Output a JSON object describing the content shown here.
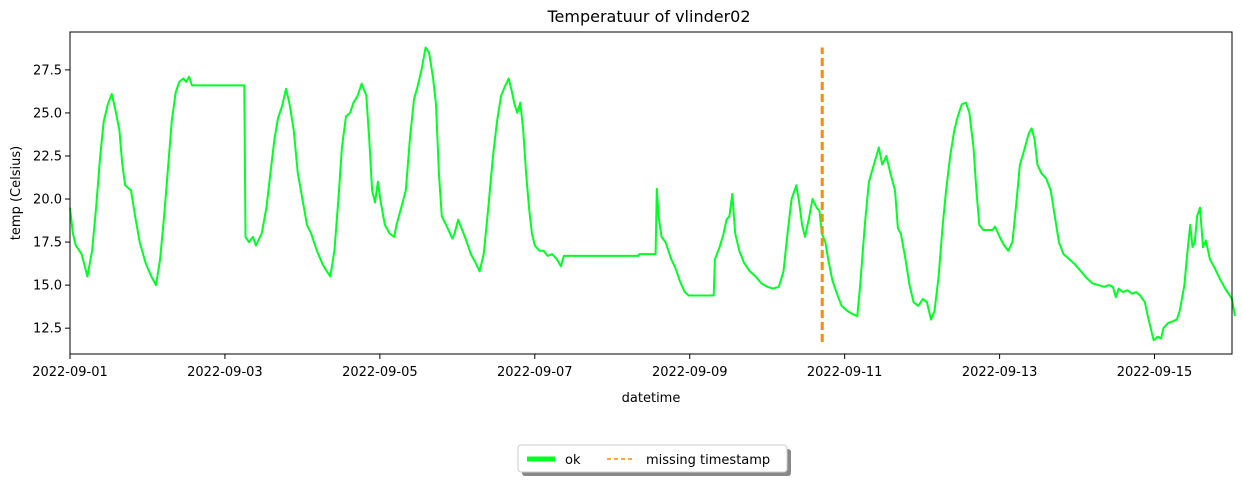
{
  "chart_data": {
    "type": "line",
    "title": "Temperatuur of vlinder02",
    "xlabel": "datetime",
    "ylabel": "temp (Celsius)",
    "x_range": [
      "2022-09-01",
      "2022-09-16"
    ],
    "xlim": [
      0,
      15
    ],
    "ylim": [
      11.0,
      29.7
    ],
    "x_ticks": [
      {
        "v": 0,
        "label": "2022-09-01"
      },
      {
        "v": 2,
        "label": "2022-09-03"
      },
      {
        "v": 4,
        "label": "2022-09-05"
      },
      {
        "v": 6,
        "label": "2022-09-07"
      },
      {
        "v": 8,
        "label": "2022-09-09"
      },
      {
        "v": 10,
        "label": "2022-09-11"
      },
      {
        "v": 12,
        "label": "2022-09-13"
      },
      {
        "v": 14,
        "label": "2022-09-15"
      }
    ],
    "y_ticks": [
      {
        "v": 12.5,
        "label": "12.5"
      },
      {
        "v": 15.0,
        "label": "15.0"
      },
      {
        "v": 17.5,
        "label": "17.5"
      },
      {
        "v": 20.0,
        "label": "20.0"
      },
      {
        "v": 22.5,
        "label": "22.5"
      },
      {
        "v": 25.0,
        "label": "25.0"
      },
      {
        "v": 27.5,
        "label": "27.5"
      }
    ],
    "grid": false,
    "legend_position": "bottom-center",
    "series": [
      {
        "name": "ok",
        "color": "#00ff22",
        "style": "solid",
        "points": [
          [
            0.0,
            19.5
          ],
          [
            0.05,
            18.0
          ],
          [
            0.1,
            17.3
          ],
          [
            0.2,
            16.8
          ],
          [
            0.3,
            15.5
          ],
          [
            0.38,
            17.0
          ],
          [
            0.45,
            19.5
          ],
          [
            0.52,
            22.5
          ],
          [
            0.58,
            24.5
          ],
          [
            0.65,
            25.5
          ],
          [
            0.72,
            26.1
          ],
          [
            0.78,
            25.2
          ],
          [
            0.85,
            24.0
          ],
          [
            0.9,
            22.0
          ],
          [
            0.95,
            20.8
          ],
          [
            1.05,
            20.5
          ],
          [
            1.12,
            19.0
          ],
          [
            1.2,
            17.5
          ],
          [
            1.3,
            16.3
          ],
          [
            1.4,
            15.5
          ],
          [
            1.48,
            15.0
          ],
          [
            1.55,
            16.5
          ],
          [
            1.62,
            19.0
          ],
          [
            1.68,
            21.5
          ],
          [
            1.75,
            24.5
          ],
          [
            1.82,
            26.2
          ],
          [
            1.88,
            26.8
          ],
          [
            1.95,
            27.0
          ],
          [
            2.0,
            26.8
          ],
          [
            2.05,
            27.1
          ],
          [
            2.1,
            26.6
          ],
          [
            2.2,
            26.6
          ],
          [
            2.4,
            26.6
          ],
          [
            2.6,
            26.6
          ],
          [
            2.8,
            26.6
          ],
          [
            3.0,
            26.6
          ],
          [
            3.02,
            17.8
          ],
          [
            3.08,
            17.5
          ],
          [
            3.15,
            17.8
          ],
          [
            3.2,
            17.3
          ],
          [
            3.3,
            18.0
          ],
          [
            3.38,
            19.5
          ],
          [
            3.45,
            21.5
          ],
          [
            3.52,
            23.5
          ],
          [
            3.58,
            24.7
          ],
          [
            3.65,
            25.4
          ],
          [
            3.72,
            26.4
          ],
          [
            3.78,
            25.5
          ],
          [
            3.85,
            24.0
          ],
          [
            3.92,
            21.5
          ],
          [
            4.0,
            20.0
          ],
          [
            4.08,
            18.5
          ],
          [
            4.15,
            18.0
          ],
          [
            4.25,
            17.0
          ],
          [
            4.35,
            16.2
          ],
          [
            4.42,
            15.8
          ],
          [
            4.48,
            15.5
          ],
          [
            4.55,
            17.0
          ],
          [
            4.62,
            20.0
          ],
          [
            4.68,
            23.0
          ],
          [
            4.75,
            24.8
          ],
          [
            4.82,
            25.0
          ],
          [
            4.88,
            25.6
          ],
          [
            4.95,
            26.0
          ],
          [
            5.02,
            26.7
          ],
          [
            5.1,
            26.0
          ],
          [
            5.15,
            23.5
          ],
          [
            5.2,
            20.5
          ],
          [
            5.25,
            19.8
          ],
          [
            5.3,
            21.0
          ],
          [
            5.35,
            19.8
          ],
          [
            5.42,
            18.5
          ],
          [
            5.5,
            18.0
          ],
          [
            5.58,
            17.8
          ],
          [
            5.62,
            18.5
          ],
          [
            5.7,
            19.5
          ],
          [
            5.78,
            20.5
          ],
          [
            5.85,
            23.5
          ],
          [
            5.92,
            25.8
          ],
          [
            5.98,
            26.5
          ],
          [
            6.05,
            27.5
          ],
          [
            6.12,
            28.8
          ],
          [
            6.18,
            28.5
          ],
          [
            6.25,
            27.0
          ],
          [
            6.3,
            25.5
          ],
          [
            6.35,
            21.5
          ],
          [
            6.4,
            19.0
          ],
          [
            6.5,
            18.3
          ],
          [
            6.58,
            17.7
          ],
          [
            6.62,
            18.0
          ],
          [
            6.68,
            18.8
          ],
          [
            6.75,
            18.2
          ],
          [
            6.82,
            17.6
          ],
          [
            6.9,
            16.8
          ],
          [
            6.98,
            16.3
          ],
          [
            7.05,
            15.8
          ],
          [
            7.12,
            16.8
          ],
          [
            7.2,
            19.5
          ],
          [
            7.28,
            22.5
          ],
          [
            7.35,
            24.5
          ],
          [
            7.42,
            26.0
          ],
          [
            7.48,
            26.5
          ],
          [
            7.55,
            27.0
          ],
          [
            7.6,
            26.3
          ],
          [
            7.65,
            25.5
          ],
          [
            7.7,
            25.0
          ],
          [
            7.75,
            25.6
          ],
          [
            7.8,
            24.0
          ],
          [
            7.85,
            21.5
          ],
          [
            7.9,
            19.5
          ],
          [
            7.95,
            18.0
          ],
          [
            8.0,
            17.3
          ],
          [
            8.08,
            17.0
          ],
          [
            8.15,
            17.0
          ],
          [
            8.22,
            16.7
          ],
          [
            8.3,
            16.8
          ],
          [
            8.38,
            16.5
          ],
          [
            8.45,
            16.1
          ],
          [
            8.5,
            16.7
          ],
          [
            8.8,
            16.7
          ],
          [
            9.2,
            16.7
          ],
          [
            9.5,
            16.7
          ],
          [
            9.78,
            16.7
          ],
          [
            9.8,
            16.8
          ],
          [
            10.08,
            16.8
          ],
          [
            10.1,
            20.6
          ],
          [
            10.13,
            19.0
          ],
          [
            10.18,
            17.8
          ],
          [
            10.25,
            17.5
          ],
          [
            10.3,
            17.0
          ],
          [
            10.35,
            16.5
          ],
          [
            10.42,
            16.0
          ],
          [
            10.5,
            15.2
          ],
          [
            10.58,
            14.6
          ],
          [
            10.65,
            14.4
          ],
          [
            10.8,
            14.4
          ],
          [
            11.0,
            14.4
          ],
          [
            11.08,
            14.4
          ],
          [
            11.1,
            16.5
          ],
          [
            11.18,
            17.2
          ],
          [
            11.25,
            18.0
          ],
          [
            11.3,
            18.8
          ],
          [
            11.35,
            19.0
          ],
          [
            11.4,
            20.3
          ],
          [
            11.45,
            18.0
          ],
          [
            11.52,
            17.0
          ],
          [
            11.6,
            16.3
          ],
          [
            11.7,
            15.8
          ],
          [
            11.8,
            15.5
          ],
          [
            11.9,
            15.1
          ],
          [
            12.0,
            14.9
          ],
          [
            12.1,
            14.8
          ],
          [
            12.2,
            14.9
          ],
          [
            12.28,
            15.8
          ],
          [
            12.35,
            18.0
          ],
          [
            12.42,
            20.0
          ],
          [
            12.5,
            20.8
          ],
          [
            12.55,
            19.8
          ],
          [
            12.6,
            18.5
          ],
          [
            12.65,
            17.8
          ],
          [
            12.72,
            18.9
          ],
          [
            12.78,
            20.0
          ],
          [
            12.85,
            19.5
          ],
          [
            12.9,
            19.3
          ],
          [
            12.94,
            18.0
          ],
          [
            13.0,
            17.5
          ],
          [
            13.05,
            16.5
          ],
          [
            13.12,
            15.3
          ],
          [
            13.2,
            14.5
          ],
          [
            13.28,
            13.8
          ],
          [
            13.38,
            13.5
          ],
          [
            13.48,
            13.3
          ],
          [
            13.55,
            13.2
          ],
          [
            13.6,
            15.0
          ],
          [
            13.68,
            18.5
          ],
          [
            13.75,
            21.0
          ],
          [
            13.82,
            21.8
          ],
          [
            13.88,
            22.5
          ],
          [
            13.92,
            23.0
          ],
          [
            13.98,
            22.0
          ],
          [
            14.05,
            22.5
          ],
          [
            14.12,
            21.5
          ],
          [
            14.2,
            20.5
          ],
          [
            14.25,
            18.3
          ],
          [
            14.3,
            18.0
          ],
          [
            14.38,
            16.5
          ],
          [
            14.45,
            15.0
          ],
          [
            14.52,
            14.0
          ],
          [
            14.6,
            13.8
          ],
          [
            14.68,
            14.2
          ],
          [
            14.75,
            14.0
          ],
          [
            14.82,
            13.0
          ],
          [
            14.88,
            13.5
          ],
          [
            14.95,
            15.5
          ],
          [
            15.02,
            18.5
          ],
          [
            15.08,
            20.5
          ],
          [
            15.15,
            22.5
          ],
          [
            15.22,
            24.0
          ],
          [
            15.28,
            24.8
          ],
          [
            15.35,
            25.5
          ],
          [
            15.42,
            25.6
          ],
          [
            15.48,
            25.0
          ],
          [
            15.55,
            23.0
          ],
          [
            15.6,
            20.5
          ],
          [
            15.65,
            18.5
          ],
          [
            15.72,
            18.2
          ],
          [
            15.8,
            18.2
          ],
          [
            15.88,
            18.2
          ],
          [
            15.92,
            18.4
          ],
          [
            16.0,
            17.8
          ],
          [
            16.08,
            17.3
          ],
          [
            16.15,
            17.0
          ],
          [
            16.22,
            17.5
          ],
          [
            16.28,
            19.5
          ],
          [
            16.35,
            22.0
          ],
          [
            16.42,
            22.8
          ],
          [
            16.5,
            23.8
          ],
          [
            16.55,
            24.1
          ],
          [
            16.6,
            23.5
          ],
          [
            16.65,
            22.0
          ],
          [
            16.72,
            21.5
          ],
          [
            16.8,
            21.2
          ],
          [
            16.88,
            20.5
          ],
          [
            16.95,
            19.0
          ],
          [
            17.02,
            17.5
          ],
          [
            17.1,
            16.8
          ],
          [
            17.2,
            16.5
          ],
          [
            17.3,
            16.2
          ],
          [
            17.4,
            15.8
          ],
          [
            17.5,
            15.4
          ],
          [
            17.6,
            15.1
          ],
          [
            17.7,
            15.0
          ],
          [
            17.8,
            14.9
          ],
          [
            17.88,
            15.0
          ],
          [
            17.95,
            14.9
          ],
          [
            18.0,
            14.3
          ],
          [
            18.05,
            14.8
          ],
          [
            18.12,
            14.6
          ],
          [
            18.2,
            14.7
          ],
          [
            18.28,
            14.5
          ],
          [
            18.35,
            14.6
          ],
          [
            18.42,
            14.4
          ],
          [
            18.5,
            14.0
          ],
          [
            18.55,
            13.2
          ],
          [
            18.6,
            12.5
          ],
          [
            18.65,
            11.8
          ],
          [
            18.72,
            12.0
          ],
          [
            18.78,
            11.9
          ],
          [
            18.82,
            12.5
          ],
          [
            18.9,
            12.8
          ],
          [
            18.98,
            12.9
          ],
          [
            19.05,
            13.0
          ],
          [
            19.1,
            13.5
          ],
          [
            19.18,
            15.0
          ],
          [
            19.22,
            16.5
          ],
          [
            19.28,
            18.5
          ],
          [
            19.32,
            17.2
          ],
          [
            19.36,
            17.5
          ],
          [
            19.4,
            19.0
          ],
          [
            19.45,
            19.5
          ],
          [
            19.5,
            17.2
          ],
          [
            19.55,
            17.6
          ],
          [
            19.62,
            16.5
          ],
          [
            19.7,
            16.0
          ],
          [
            19.8,
            15.3
          ],
          [
            19.9,
            14.7
          ],
          [
            20.0,
            14.2
          ],
          [
            20.05,
            13.2
          ]
        ],
        "x_scale": 0.75
      }
    ],
    "markers": [
      {
        "name": "missing timestamp",
        "color": "#ff8c00",
        "style": "dashed",
        "x": 9.71,
        "y_from": 11.7,
        "y_to": 28.8
      }
    ]
  }
}
